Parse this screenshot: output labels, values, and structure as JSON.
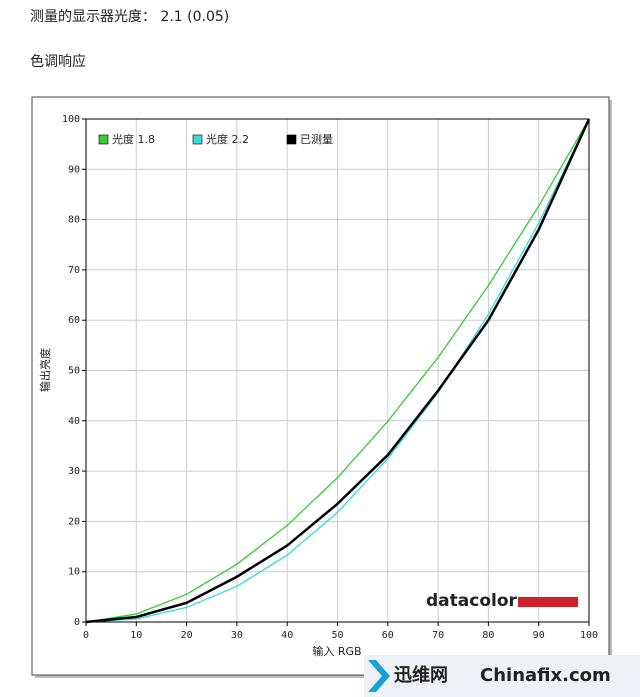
{
  "heading": "测量的显示器光度：  2.1 (0.05)",
  "section": "色调响应",
  "logo": "datacolor",
  "watermark": [
    "迅维网",
    "Chinafix.com"
  ],
  "chart_data": {
    "type": "line",
    "x_label": "输入 RGB",
    "y_label": "输出亮度",
    "x": [
      0,
      10,
      20,
      30,
      40,
      50,
      60,
      70,
      80,
      90,
      100
    ],
    "series": [
      {
        "name": "光度 1.8",
        "color": "#33cc33",
        "values": [
          0,
          1.6,
          5.5,
          11.5,
          19.2,
          28.7,
          39.9,
          52.6,
          66.9,
          82.7,
          100
        ]
      },
      {
        "name": "光度 2.2",
        "color": "#33dddd",
        "values": [
          0,
          0.6,
          2.9,
          7.1,
          13.3,
          21.8,
          32.5,
          45.6,
          61.2,
          79.3,
          100
        ]
      },
      {
        "name": "已测量",
        "color": "#000000",
        "values": [
          0,
          1,
          3.8,
          9,
          15.2,
          23.5,
          33.2,
          46,
          60,
          78,
          100
        ]
      }
    ],
    "xlim": [
      0,
      100
    ],
    "ylim": [
      0,
      100
    ],
    "xticks": [
      0,
      10,
      20,
      30,
      40,
      50,
      60,
      70,
      80,
      90,
      100
    ],
    "yticks": [
      0,
      10,
      20,
      30,
      40,
      50,
      60,
      70,
      80,
      90,
      100
    ],
    "grid": true,
    "legend": "top-left"
  }
}
